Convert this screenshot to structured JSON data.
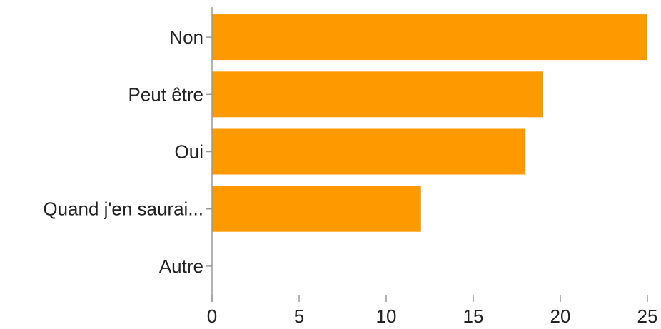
{
  "chart_data": {
    "type": "bar",
    "orientation": "horizontal",
    "categories": [
      "Non",
      "Peut être",
      "Oui",
      "Quand j'en saurai...",
      "Autre"
    ],
    "values": [
      25,
      19,
      18,
      12,
      0
    ],
    "xlim": [
      0,
      25
    ],
    "xticks": [
      0,
      5,
      10,
      15,
      20,
      25
    ],
    "title": "",
    "xlabel": "",
    "ylabel": "",
    "grid": false,
    "bar_color": "#ff9900",
    "axis_color": "#999999"
  }
}
